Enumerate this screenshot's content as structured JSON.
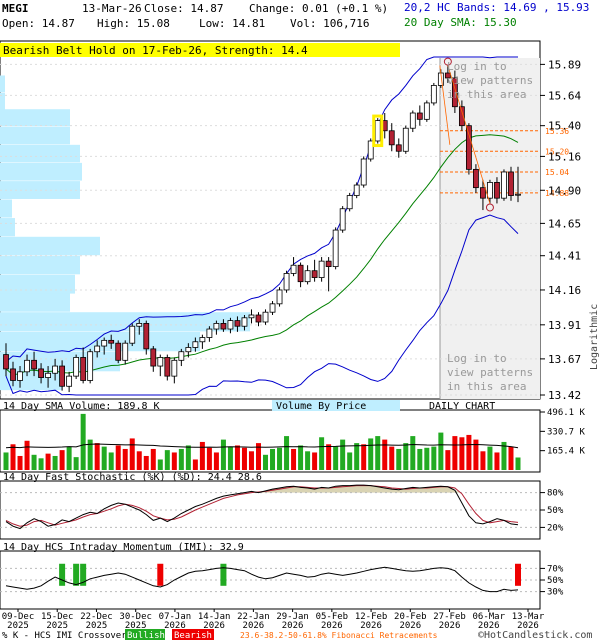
{
  "header": {
    "symbol": "MEGI",
    "date": "13-Mar-26",
    "close": "Close: 14.87",
    "change": "Change: 0.01 (+0.1 %)",
    "open": "Open: 14.87",
    "high": "High: 15.08",
    "low": "Low: 14.81",
    "volume": "Vol: 106,716",
    "bands": "20,2 HC Bands: 14.69 , 15.93",
    "sma": "20 Day SMA: 15.30"
  },
  "pattern_banner": "Bearish Belt Hold on 17-Feb-26, Strength: 14.4",
  "login_top": [
    "Log in to",
    "view patterns",
    "in this area"
  ],
  "login_bottom": [
    "Log in to",
    "view patterns",
    "in this area"
  ],
  "panel_titles": {
    "volume": "14 Day SMA Volume: 189.8 K",
    "vbp": "Volume By Price",
    "daily": "DAILY CHART",
    "stoch": "14 Day Fast Stochastic (%K) (%D): 24.4 28.6",
    "imi": "14 Day HCS Intraday Momentum (IMI): 32.9"
  },
  "x_axis": {
    "labels": [
      [
        "09-Dec",
        "2025"
      ],
      [
        "15-Dec",
        "2025"
      ],
      [
        "22-Dec",
        "2025"
      ],
      [
        "30-Dec",
        "2025"
      ],
      [
        "07-Jan",
        "2026"
      ],
      [
        "14-Jan",
        "2026"
      ],
      [
        "22-Jan",
        "2026"
      ],
      [
        "29-Jan",
        "2026"
      ],
      [
        "05-Feb",
        "2026"
      ],
      [
        "12-Feb",
        "2026"
      ],
      [
        "20-Feb",
        "2026"
      ],
      [
        "27-Feb",
        "2026"
      ],
      [
        "06-Mar",
        "2026"
      ],
      [
        "13-Mar",
        "2026"
      ]
    ]
  },
  "footer": {
    "crossover": "% K - HCS IMI Crossover:",
    "bullish": "Bullish",
    "bearish": "Bearish",
    "fib": "23.6-38.2-50-61.8% Fibonacci Retracements",
    "copyright": "©HotCandlestick.com"
  },
  "colors": {
    "up": "#ffffff",
    "down": "#b22234",
    "sma": "#008000",
    "bands": "#0000cc",
    "vbp": "#bfeeff",
    "banner": "#ffff00",
    "fib": "#ff6600",
    "vol_up": "#22aa22",
    "vol_down": "#ee0000"
  },
  "chart_data": [
    {
      "type": "candlestick",
      "scale": "log",
      "ylim": [
        13.42,
        15.95
      ],
      "y_ticks": [
        "15.89",
        "15.64",
        "15.40",
        "15.16",
        "14.90",
        "14.65",
        "14.41",
        "14.16",
        "13.91",
        "13.67",
        "13.42"
      ],
      "y_axis_label": "Logarithmic",
      "fib_levels": [
        "15.36",
        "15.20",
        "15.04",
        "14.88"
      ],
      "ohlc": [
        [
          13.7,
          13.78,
          13.55,
          13.6
        ],
        [
          13.6,
          13.65,
          13.48,
          13.52
        ],
        [
          13.52,
          13.62,
          13.47,
          13.58
        ],
        [
          13.58,
          13.7,
          13.55,
          13.66
        ],
        [
          13.66,
          13.72,
          13.55,
          13.6
        ],
        [
          13.6,
          13.64,
          13.5,
          13.54
        ],
        [
          13.54,
          13.62,
          13.47,
          13.57
        ],
        [
          13.57,
          13.67,
          13.52,
          13.62
        ],
        [
          13.62,
          13.66,
          13.45,
          13.48
        ],
        [
          13.48,
          13.58,
          13.44,
          13.55
        ],
        [
          13.55,
          13.7,
          13.53,
          13.68
        ],
        [
          13.68,
          13.75,
          13.5,
          13.52
        ],
        [
          13.52,
          13.74,
          13.5,
          13.72
        ],
        [
          13.72,
          13.8,
          13.68,
          13.76
        ],
        [
          13.76,
          13.82,
          13.7,
          13.8
        ],
        [
          13.8,
          13.84,
          13.74,
          13.78
        ],
        [
          13.78,
          13.8,
          13.64,
          13.66
        ],
        [
          13.66,
          13.8,
          13.63,
          13.78
        ],
        [
          13.78,
          13.92,
          13.76,
          13.9
        ],
        [
          13.9,
          13.95,
          13.84,
          13.92
        ],
        [
          13.92,
          13.94,
          13.7,
          13.74
        ],
        [
          13.74,
          13.76,
          13.58,
          13.62
        ],
        [
          13.62,
          13.7,
          13.55,
          13.68
        ],
        [
          13.68,
          13.7,
          13.52,
          13.55
        ],
        [
          13.55,
          13.68,
          13.5,
          13.66
        ],
        [
          13.66,
          13.74,
          13.62,
          13.72
        ],
        [
          13.72,
          13.78,
          13.68,
          13.75
        ],
        [
          13.75,
          13.82,
          13.72,
          13.79
        ],
        [
          13.79,
          13.84,
          13.74,
          13.82
        ],
        [
          13.82,
          13.9,
          13.79,
          13.88
        ],
        [
          13.88,
          13.94,
          13.84,
          13.92
        ],
        [
          13.92,
          13.95,
          13.86,
          13.88
        ],
        [
          13.88,
          13.96,
          13.85,
          13.94
        ],
        [
          13.94,
          13.97,
          13.86,
          13.9
        ],
        [
          13.9,
          13.98,
          13.87,
          13.96
        ],
        [
          13.96,
          14.02,
          13.92,
          13.98
        ],
        [
          13.98,
          14.0,
          13.9,
          13.93
        ],
        [
          13.93,
          14.02,
          13.91,
          14.0
        ],
        [
          14.0,
          14.08,
          13.98,
          14.06
        ],
        [
          14.06,
          14.18,
          14.04,
          14.16
        ],
        [
          14.16,
          14.3,
          14.14,
          14.28
        ],
        [
          14.28,
          14.4,
          14.26,
          14.34
        ],
        [
          14.34,
          14.36,
          14.18,
          14.22
        ],
        [
          14.22,
          14.34,
          14.2,
          14.3
        ],
        [
          14.3,
          14.38,
          14.22,
          14.25
        ],
        [
          14.25,
          14.4,
          14.22,
          14.37
        ],
        [
          14.37,
          14.4,
          14.15,
          14.33
        ],
        [
          14.33,
          14.62,
          14.31,
          14.6
        ],
        [
          14.6,
          14.78,
          14.58,
          14.76
        ],
        [
          14.76,
          14.88,
          14.74,
          14.86
        ],
        [
          14.86,
          14.96,
          14.84,
          14.94
        ],
        [
          14.94,
          15.16,
          14.92,
          15.14
        ],
        [
          15.14,
          15.3,
          15.12,
          15.28
        ],
        [
          15.28,
          15.46,
          15.26,
          15.44
        ],
        [
          15.44,
          15.5,
          15.3,
          15.36
        ],
        [
          15.36,
          15.42,
          15.2,
          15.25
        ],
        [
          15.25,
          15.3,
          15.15,
          15.2
        ],
        [
          15.2,
          15.4,
          15.18,
          15.38
        ],
        [
          15.38,
          15.52,
          15.35,
          15.5
        ],
        [
          15.5,
          15.56,
          15.4,
          15.45
        ],
        [
          15.45,
          15.6,
          15.43,
          15.58
        ],
        [
          15.58,
          15.74,
          15.56,
          15.72
        ],
        [
          15.72,
          15.85,
          15.7,
          15.82
        ],
        [
          15.82,
          15.88,
          15.74,
          15.78
        ],
        [
          15.78,
          15.84,
          15.5,
          15.55
        ],
        [
          15.55,
          15.6,
          15.36,
          15.4
        ],
        [
          15.4,
          15.42,
          15.02,
          15.06
        ],
        [
          15.06,
          15.1,
          14.88,
          14.92
        ],
        [
          14.92,
          14.98,
          14.75,
          14.84
        ],
        [
          14.84,
          14.98,
          14.8,
          14.96
        ],
        [
          14.96,
          15.0,
          14.8,
          14.84
        ],
        [
          14.84,
          15.06,
          14.82,
          15.04
        ],
        [
          15.04,
          15.08,
          14.82,
          14.86
        ],
        [
          14.87,
          15.08,
          14.81,
          14.87
        ]
      ]
    },
    {
      "type": "bar",
      "title": "14 Day SMA Volume: 189.8 K",
      "y_ticks": [
        "496.1 K",
        "330.7 K",
        "165.4 K"
      ],
      "ylim": [
        0,
        496.1
      ],
      "values": [
        [
          150,
          "up"
        ],
        [
          220,
          "down"
        ],
        [
          120,
          "down"
        ],
        [
          250,
          "down"
        ],
        [
          130,
          "up"
        ],
        [
          100,
          "up"
        ],
        [
          140,
          "down"
        ],
        [
          120,
          "up"
        ],
        [
          170,
          "down"
        ],
        [
          200,
          "up"
        ],
        [
          110,
          "up"
        ],
        [
          480,
          "up"
        ],
        [
          260,
          "up"
        ],
        [
          230,
          "down"
        ],
        [
          200,
          "up"
        ],
        [
          150,
          "up"
        ],
        [
          210,
          "down"
        ],
        [
          180,
          "down"
        ],
        [
          270,
          "down"
        ],
        [
          160,
          "down"
        ],
        [
          120,
          "down"
        ],
        [
          180,
          "down"
        ],
        [
          90,
          "up"
        ],
        [
          170,
          "up"
        ],
        [
          150,
          "down"
        ],
        [
          180,
          "up"
        ],
        [
          210,
          "up"
        ],
        [
          90,
          "down"
        ],
        [
          240,
          "down"
        ],
        [
          190,
          "down"
        ],
        [
          150,
          "down"
        ],
        [
          260,
          "up"
        ],
        [
          200,
          "up"
        ],
        [
          210,
          "down"
        ],
        [
          190,
          "down"
        ],
        [
          160,
          "down"
        ],
        [
          230,
          "down"
        ],
        [
          130,
          "up"
        ],
        [
          180,
          "up"
        ],
        [
          190,
          "up"
        ],
        [
          290,
          "up"
        ],
        [
          180,
          "down"
        ],
        [
          210,
          "up"
        ],
        [
          160,
          "up"
        ],
        [
          150,
          "down"
        ],
        [
          280,
          "up"
        ],
        [
          220,
          "down"
        ],
        [
          200,
          "up"
        ],
        [
          260,
          "up"
        ],
        [
          150,
          "up"
        ],
        [
          230,
          "up"
        ],
        [
          220,
          "down"
        ],
        [
          270,
          "up"
        ],
        [
          290,
          "up"
        ],
        [
          260,
          "down"
        ],
        [
          200,
          "down"
        ],
        [
          180,
          "up"
        ],
        [
          230,
          "up"
        ],
        [
          290,
          "up"
        ],
        [
          180,
          "up"
        ],
        [
          190,
          "up"
        ],
        [
          200,
          "up"
        ],
        [
          320,
          "up"
        ],
        [
          170,
          "down"
        ],
        [
          290,
          "down"
        ],
        [
          280,
          "down"
        ],
        [
          300,
          "down"
        ],
        [
          260,
          "down"
        ],
        [
          160,
          "down"
        ],
        [
          200,
          "up"
        ],
        [
          150,
          "down"
        ],
        [
          240,
          "up"
        ],
        [
          200,
          "down"
        ],
        [
          107,
          "up"
        ]
      ],
      "sma_line": [
        190,
        195,
        192,
        198,
        196,
        194,
        193,
        195,
        197,
        200,
        198,
        215,
        220,
        222,
        220,
        218,
        217,
        215,
        216,
        214,
        212,
        210,
        205,
        203,
        200,
        198,
        196,
        194,
        195,
        196,
        195,
        197,
        199,
        198,
        197,
        195,
        196,
        194,
        196,
        198,
        200,
        199,
        200,
        198,
        197,
        200,
        201,
        202,
        205,
        206,
        208,
        209,
        211,
        214,
        215,
        213,
        212,
        214,
        218,
        216,
        214,
        213,
        216,
        215,
        214,
        215,
        217,
        218,
        216,
        213,
        210,
        205,
        200,
        190
      ]
    },
    {
      "type": "line",
      "title": "14 Day Fast Stochastic (%K) (%D): 24.4 28.6",
      "ylim": [
        0,
        100
      ],
      "y_ticks": [
        "80%",
        "50%",
        "20%"
      ],
      "series": [
        {
          "name": "%K",
          "values": [
            30,
            22,
            18,
            28,
            35,
            30,
            22,
            25,
            33,
            30,
            36,
            42,
            46,
            44,
            52,
            58,
            62,
            60,
            55,
            50,
            42,
            32,
            36,
            30,
            36,
            44,
            50,
            56,
            60,
            65,
            70,
            74,
            76,
            78,
            80,
            82,
            80,
            83,
            86,
            88,
            90,
            91,
            89,
            88,
            86,
            89,
            88,
            91,
            92,
            92,
            93,
            93,
            92,
            90,
            88,
            86,
            85,
            87,
            89,
            88,
            89,
            90,
            91,
            90,
            84,
            62,
            40,
            28,
            26,
            30,
            35,
            32,
            26,
            24.4
          ]
        },
        {
          "name": "%D",
          "values": [
            32,
            26,
            22,
            24,
            30,
            32,
            28,
            24,
            27,
            30,
            33,
            38,
            42,
            44,
            48,
            52,
            57,
            60,
            58,
            54,
            48,
            40,
            36,
            33,
            34,
            38,
            44,
            50,
            55,
            60,
            65,
            70,
            73,
            76,
            78,
            80,
            81,
            82,
            84,
            86,
            88,
            90,
            90,
            89,
            88,
            88,
            88,
            89,
            90,
            91,
            92,
            92,
            92,
            91,
            90,
            88,
            87,
            86,
            87,
            88,
            88,
            89,
            90,
            90,
            88,
            78,
            60,
            44,
            32,
            28,
            30,
            32,
            30,
            28.6
          ]
        }
      ]
    },
    {
      "type": "line",
      "title": "14 Day HCS Intraday Momentum (IMI): 32.9",
      "ylim": [
        0,
        100
      ],
      "y_ticks": [
        "70%",
        "50%",
        "30%"
      ],
      "series": [
        {
          "name": "IMI",
          "values": [
            40,
            38,
            36,
            34,
            36,
            40,
            48,
            55,
            50,
            45,
            42,
            46,
            52,
            55,
            58,
            60,
            62,
            60,
            55,
            50,
            45,
            40,
            38,
            42,
            50,
            56,
            62,
            65,
            66,
            68,
            70,
            71,
            70,
            68,
            66,
            60,
            55,
            52,
            54,
            58,
            62,
            60,
            58,
            55,
            56,
            60,
            62,
            60,
            58,
            60,
            62,
            65,
            68,
            70,
            72,
            70,
            68,
            66,
            65,
            66,
            68,
            70,
            71,
            70,
            66,
            55,
            45,
            38,
            32,
            30,
            30,
            34,
            32,
            32.9
          ]
        }
      ],
      "crossover_markers": [
        [
          8,
          "up"
        ],
        [
          10,
          "up"
        ],
        [
          11,
          "up"
        ],
        [
          22,
          "down"
        ],
        [
          31,
          "up"
        ],
        [
          73,
          "down"
        ]
      ]
    }
  ]
}
